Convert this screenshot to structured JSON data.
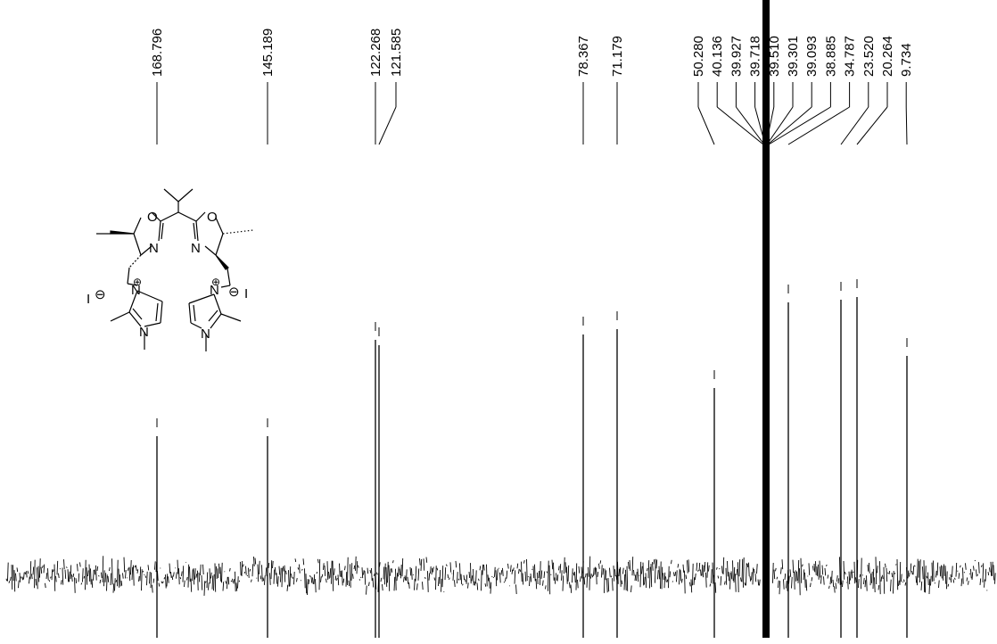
{
  "chart_data": {
    "type": "nmr-spectrum",
    "peaks": [
      {
        "ppm": 168.796,
        "label": "168.796",
        "height": 0.52
      },
      {
        "ppm": 145.189,
        "label": "145.189",
        "height": 0.52
      },
      {
        "ppm": 122.268,
        "label": "122.268",
        "height": 0.88
      },
      {
        "ppm": 121.585,
        "label": "121.585",
        "height": 0.86
      },
      {
        "ppm": 78.367,
        "label": "78.367",
        "height": 0.9
      },
      {
        "ppm": 71.179,
        "label": "71.179",
        "height": 0.92
      },
      {
        "ppm": 50.28,
        "label": "50.280",
        "height": 0.7
      },
      {
        "ppm": 40.136,
        "label": "40.136",
        "height": 1.0
      },
      {
        "ppm": 39.927,
        "label": "39.927",
        "height": 1.0
      },
      {
        "ppm": 39.718,
        "label": "39.718",
        "height": 1.0
      },
      {
        "ppm": 39.51,
        "label": "39.510",
        "height": 1.0
      },
      {
        "ppm": 39.301,
        "label": "39.301",
        "height": 1.0
      },
      {
        "ppm": 39.093,
        "label": "39.093",
        "height": 1.0
      },
      {
        "ppm": 38.885,
        "label": "38.885",
        "height": 1.0
      },
      {
        "ppm": 34.787,
        "label": "34.787",
        "height": 1.02
      },
      {
        "ppm": 23.52,
        "label": "23.520",
        "height": 1.03
      },
      {
        "ppm": 20.264,
        "label": "20.264",
        "height": 1.04
      },
      {
        "ppm": 9.734,
        "label": "9.734",
        "height": 0.82
      }
    ],
    "solvent_region": [
      38.6,
      40.4
    ],
    "noise_amplitude": 0.24
  },
  "structure": {
    "atoms": {
      "O": "O",
      "N": "N",
      "iodide": "I",
      "minus": "⊖",
      "plus": "⊕"
    }
  }
}
